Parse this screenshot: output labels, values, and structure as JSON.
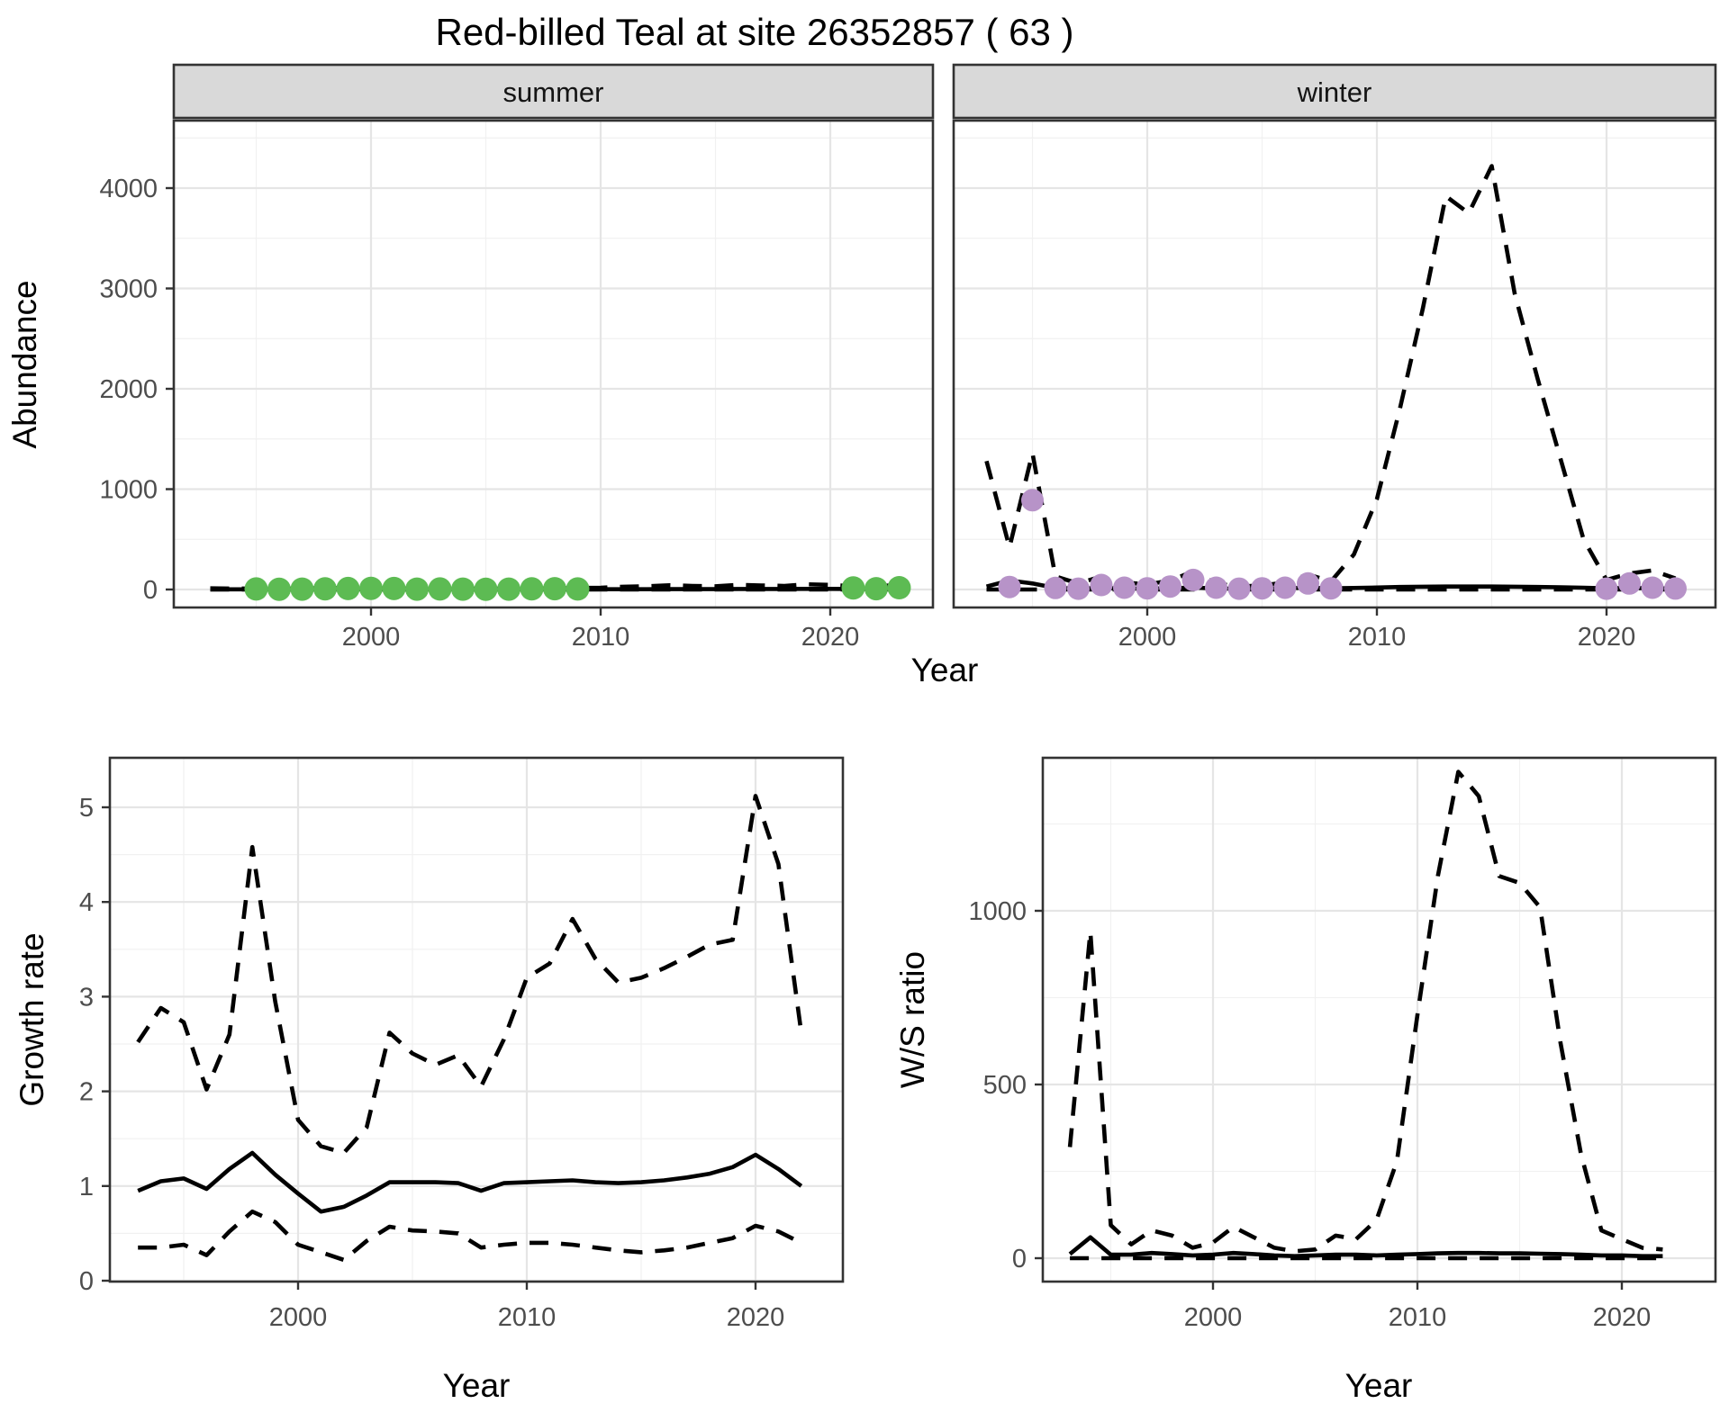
{
  "title": "Red-billed Teal at site 26352857 ( 63 )",
  "axes": {
    "abundance": "Abundance",
    "year": "Year",
    "growth_rate": "Growth rate",
    "ws_ratio": "W/S ratio"
  },
  "colors": {
    "summer_point": "#5DBB53",
    "winter_point": "#B793C8",
    "line": "#000000",
    "strip_bg": "#D9D9D9",
    "tick_text": "#4D4D4D"
  },
  "chart_data": [
    {
      "id": "abundance_summer",
      "type": "line",
      "facet": "summer",
      "ylabel": "Abundance",
      "xlabel": "Year",
      "ylim": [
        0,
        4670
      ],
      "yticks": [
        0,
        1000,
        2000,
        3000,
        4000
      ],
      "xticks": [
        2000,
        2010,
        2020
      ],
      "x": [
        1993,
        1994,
        1995,
        1996,
        1997,
        1998,
        1999,
        2000,
        2001,
        2002,
        2003,
        2004,
        2005,
        2006,
        2007,
        2008,
        2009,
        2010,
        2011,
        2012,
        2013,
        2014,
        2015,
        2016,
        2017,
        2018,
        2019,
        2020,
        2021,
        2022,
        2023
      ],
      "series": [
        {
          "name": "estimate",
          "style": "solid",
          "values": [
            2,
            2,
            2,
            2,
            2,
            2,
            2,
            2,
            2,
            2,
            2,
            2,
            2,
            2,
            2,
            2,
            2,
            3,
            3,
            3,
            4,
            4,
            4,
            5,
            5,
            5,
            6,
            6,
            5,
            5,
            5
          ]
        },
        {
          "name": "upper_ci",
          "style": "dashed",
          "values": [
            12,
            10,
            8,
            8,
            10,
            14,
            16,
            12,
            10,
            10,
            12,
            10,
            8,
            8,
            10,
            12,
            14,
            18,
            28,
            32,
            42,
            36,
            32,
            46,
            40,
            36,
            52,
            46,
            32,
            36,
            42
          ]
        },
        {
          "name": "lower_ci",
          "style": "dashed",
          "values": [
            0,
            0,
            0,
            0,
            0,
            0,
            0,
            0,
            0,
            0,
            0,
            0,
            0,
            0,
            0,
            0,
            0,
            0,
            0,
            0,
            0,
            0,
            0,
            0,
            0,
            0,
            0,
            0,
            0,
            0,
            0
          ]
        }
      ],
      "points": {
        "name": "observed_counts",
        "color_key": "summer_point",
        "x": [
          1995,
          1996,
          1997,
          1998,
          1999,
          2000,
          2001,
          2002,
          2003,
          2004,
          2005,
          2006,
          2007,
          2008,
          2009,
          2021,
          2022,
          2023
        ],
        "y": [
          5,
          3,
          4,
          6,
          10,
          12,
          10,
          4,
          5,
          4,
          3,
          4,
          6,
          8,
          5,
          15,
          8,
          18
        ]
      }
    },
    {
      "id": "abundance_winter",
      "type": "line",
      "facet": "winter",
      "ylabel": "Abundance",
      "xlabel": "Year",
      "ylim": [
        0,
        4670
      ],
      "yticks": [
        0,
        1000,
        2000,
        3000,
        4000
      ],
      "xticks": [
        2000,
        2010,
        2020
      ],
      "x": [
        1993,
        1994,
        1995,
        1996,
        1997,
        1998,
        1999,
        2000,
        2001,
        2002,
        2003,
        2004,
        2005,
        2006,
        2007,
        2008,
        2009,
        2010,
        2011,
        2012,
        2013,
        2014,
        2015,
        2016,
        2017,
        2018,
        2019,
        2020,
        2021,
        2022,
        2023
      ],
      "series": [
        {
          "name": "estimate",
          "style": "solid",
          "values": [
            30,
            90,
            60,
            15,
            10,
            15,
            10,
            8,
            12,
            20,
            10,
            8,
            10,
            12,
            18,
            12,
            15,
            20,
            25,
            28,
            30,
            30,
            30,
            28,
            25,
            22,
            18,
            12,
            15,
            12,
            10
          ]
        },
        {
          "name": "upper_ci",
          "style": "dashed",
          "values": [
            1280,
            420,
            1360,
            130,
            60,
            130,
            70,
            50,
            90,
            180,
            60,
            30,
            40,
            70,
            150,
            80,
            350,
            900,
            1800,
            2800,
            3920,
            3750,
            4220,
            2950,
            2100,
            1300,
            500,
            95,
            160,
            190,
            110
          ]
        },
        {
          "name": "lower_ci",
          "style": "dashed",
          "values": [
            0,
            0,
            0,
            0,
            0,
            0,
            0,
            0,
            0,
            0,
            0,
            0,
            0,
            0,
            0,
            0,
            0,
            0,
            0,
            0,
            0,
            0,
            0,
            0,
            0,
            0,
            0,
            0,
            0,
            0,
            0
          ]
        }
      ],
      "points": {
        "name": "observed_counts",
        "color_key": "winter_point",
        "x": [
          1994,
          1995,
          1996,
          1997,
          1998,
          1999,
          2000,
          2001,
          2002,
          2003,
          2004,
          2005,
          2006,
          2007,
          2008,
          2020,
          2021,
          2022,
          2023
        ],
        "y": [
          25,
          890,
          15,
          8,
          45,
          18,
          12,
          30,
          95,
          18,
          8,
          12,
          18,
          60,
          12,
          8,
          60,
          18,
          10
        ]
      }
    },
    {
      "id": "growth_rate",
      "type": "line",
      "ylabel": "Growth rate",
      "xlabel": "Year",
      "ylim": [
        0,
        5.52
      ],
      "yticks": [
        0,
        1,
        2,
        3,
        4,
        5
      ],
      "xticks": [
        2000,
        2010,
        2020
      ],
      "x": [
        1993,
        1994,
        1995,
        1996,
        1997,
        1998,
        1999,
        2000,
        2001,
        2002,
        2003,
        2004,
        2005,
        2006,
        2007,
        2008,
        2009,
        2010,
        2011,
        2012,
        2013,
        2014,
        2015,
        2016,
        2017,
        2018,
        2019,
        2020,
        2021,
        2022
      ],
      "series": [
        {
          "name": "estimate",
          "style": "solid",
          "values": [
            0.95,
            1.05,
            1.08,
            0.97,
            1.18,
            1.35,
            1.12,
            0.92,
            0.73,
            0.78,
            0.9,
            1.04,
            1.04,
            1.04,
            1.03,
            0.95,
            1.03,
            1.04,
            1.05,
            1.06,
            1.04,
            1.03,
            1.04,
            1.06,
            1.09,
            1.13,
            1.2,
            1.33,
            1.18,
            1.0
          ]
        },
        {
          "name": "upper_ci",
          "style": "dashed",
          "values": [
            2.52,
            2.88,
            2.73,
            2.02,
            2.6,
            4.58,
            2.95,
            1.7,
            1.42,
            1.35,
            1.62,
            2.62,
            2.4,
            2.28,
            2.38,
            2.05,
            2.55,
            3.2,
            3.35,
            3.82,
            3.4,
            3.15,
            3.2,
            3.3,
            3.42,
            3.55,
            3.6,
            5.12,
            4.4,
            2.62
          ]
        },
        {
          "name": "lower_ci",
          "style": "dashed",
          "values": [
            0.35,
            0.35,
            0.38,
            0.27,
            0.52,
            0.73,
            0.62,
            0.38,
            0.3,
            0.22,
            0.42,
            0.57,
            0.53,
            0.52,
            0.5,
            0.35,
            0.38,
            0.4,
            0.4,
            0.38,
            0.35,
            0.32,
            0.3,
            0.32,
            0.35,
            0.4,
            0.45,
            0.58,
            0.52,
            0.4
          ]
        }
      ]
    },
    {
      "id": "ws_ratio",
      "type": "line",
      "ylabel": "W/S ratio",
      "xlabel": "Year",
      "ylim": [
        0,
        1440
      ],
      "yticks": [
        0,
        500,
        1000
      ],
      "xticks": [
        2000,
        2010,
        2020
      ],
      "x": [
        1993,
        1994,
        1995,
        1996,
        1997,
        1998,
        1999,
        2000,
        2001,
        2002,
        2003,
        2004,
        2005,
        2006,
        2007,
        2008,
        2009,
        2010,
        2011,
        2012,
        2013,
        2014,
        2015,
        2016,
        2017,
        2018,
        2019,
        2020,
        2021,
        2022
      ],
      "series": [
        {
          "name": "estimate",
          "style": "solid",
          "values": [
            12,
            60,
            10,
            10,
            15,
            12,
            8,
            10,
            15,
            12,
            8,
            6,
            8,
            10,
            10,
            8,
            10,
            12,
            14,
            15,
            15,
            14,
            14,
            13,
            12,
            10,
            8,
            8,
            6,
            6
          ]
        },
        {
          "name": "upper_ci",
          "style": "dashed",
          "values": [
            320,
            940,
            95,
            40,
            80,
            65,
            30,
            45,
            90,
            60,
            30,
            20,
            25,
            65,
            55,
            110,
            280,
            700,
            1100,
            1400,
            1330,
            1100,
            1080,
            1010,
            620,
            300,
            80,
            55,
            30,
            25
          ]
        },
        {
          "name": "lower_ci",
          "style": "dashed",
          "values": [
            0,
            0,
            0,
            0,
            0,
            0,
            0,
            0,
            0,
            0,
            0,
            0,
            0,
            0,
            0,
            0,
            0,
            0,
            0,
            0,
            0,
            0,
            0,
            0,
            0,
            0,
            0,
            0,
            0,
            0
          ]
        }
      ]
    }
  ]
}
